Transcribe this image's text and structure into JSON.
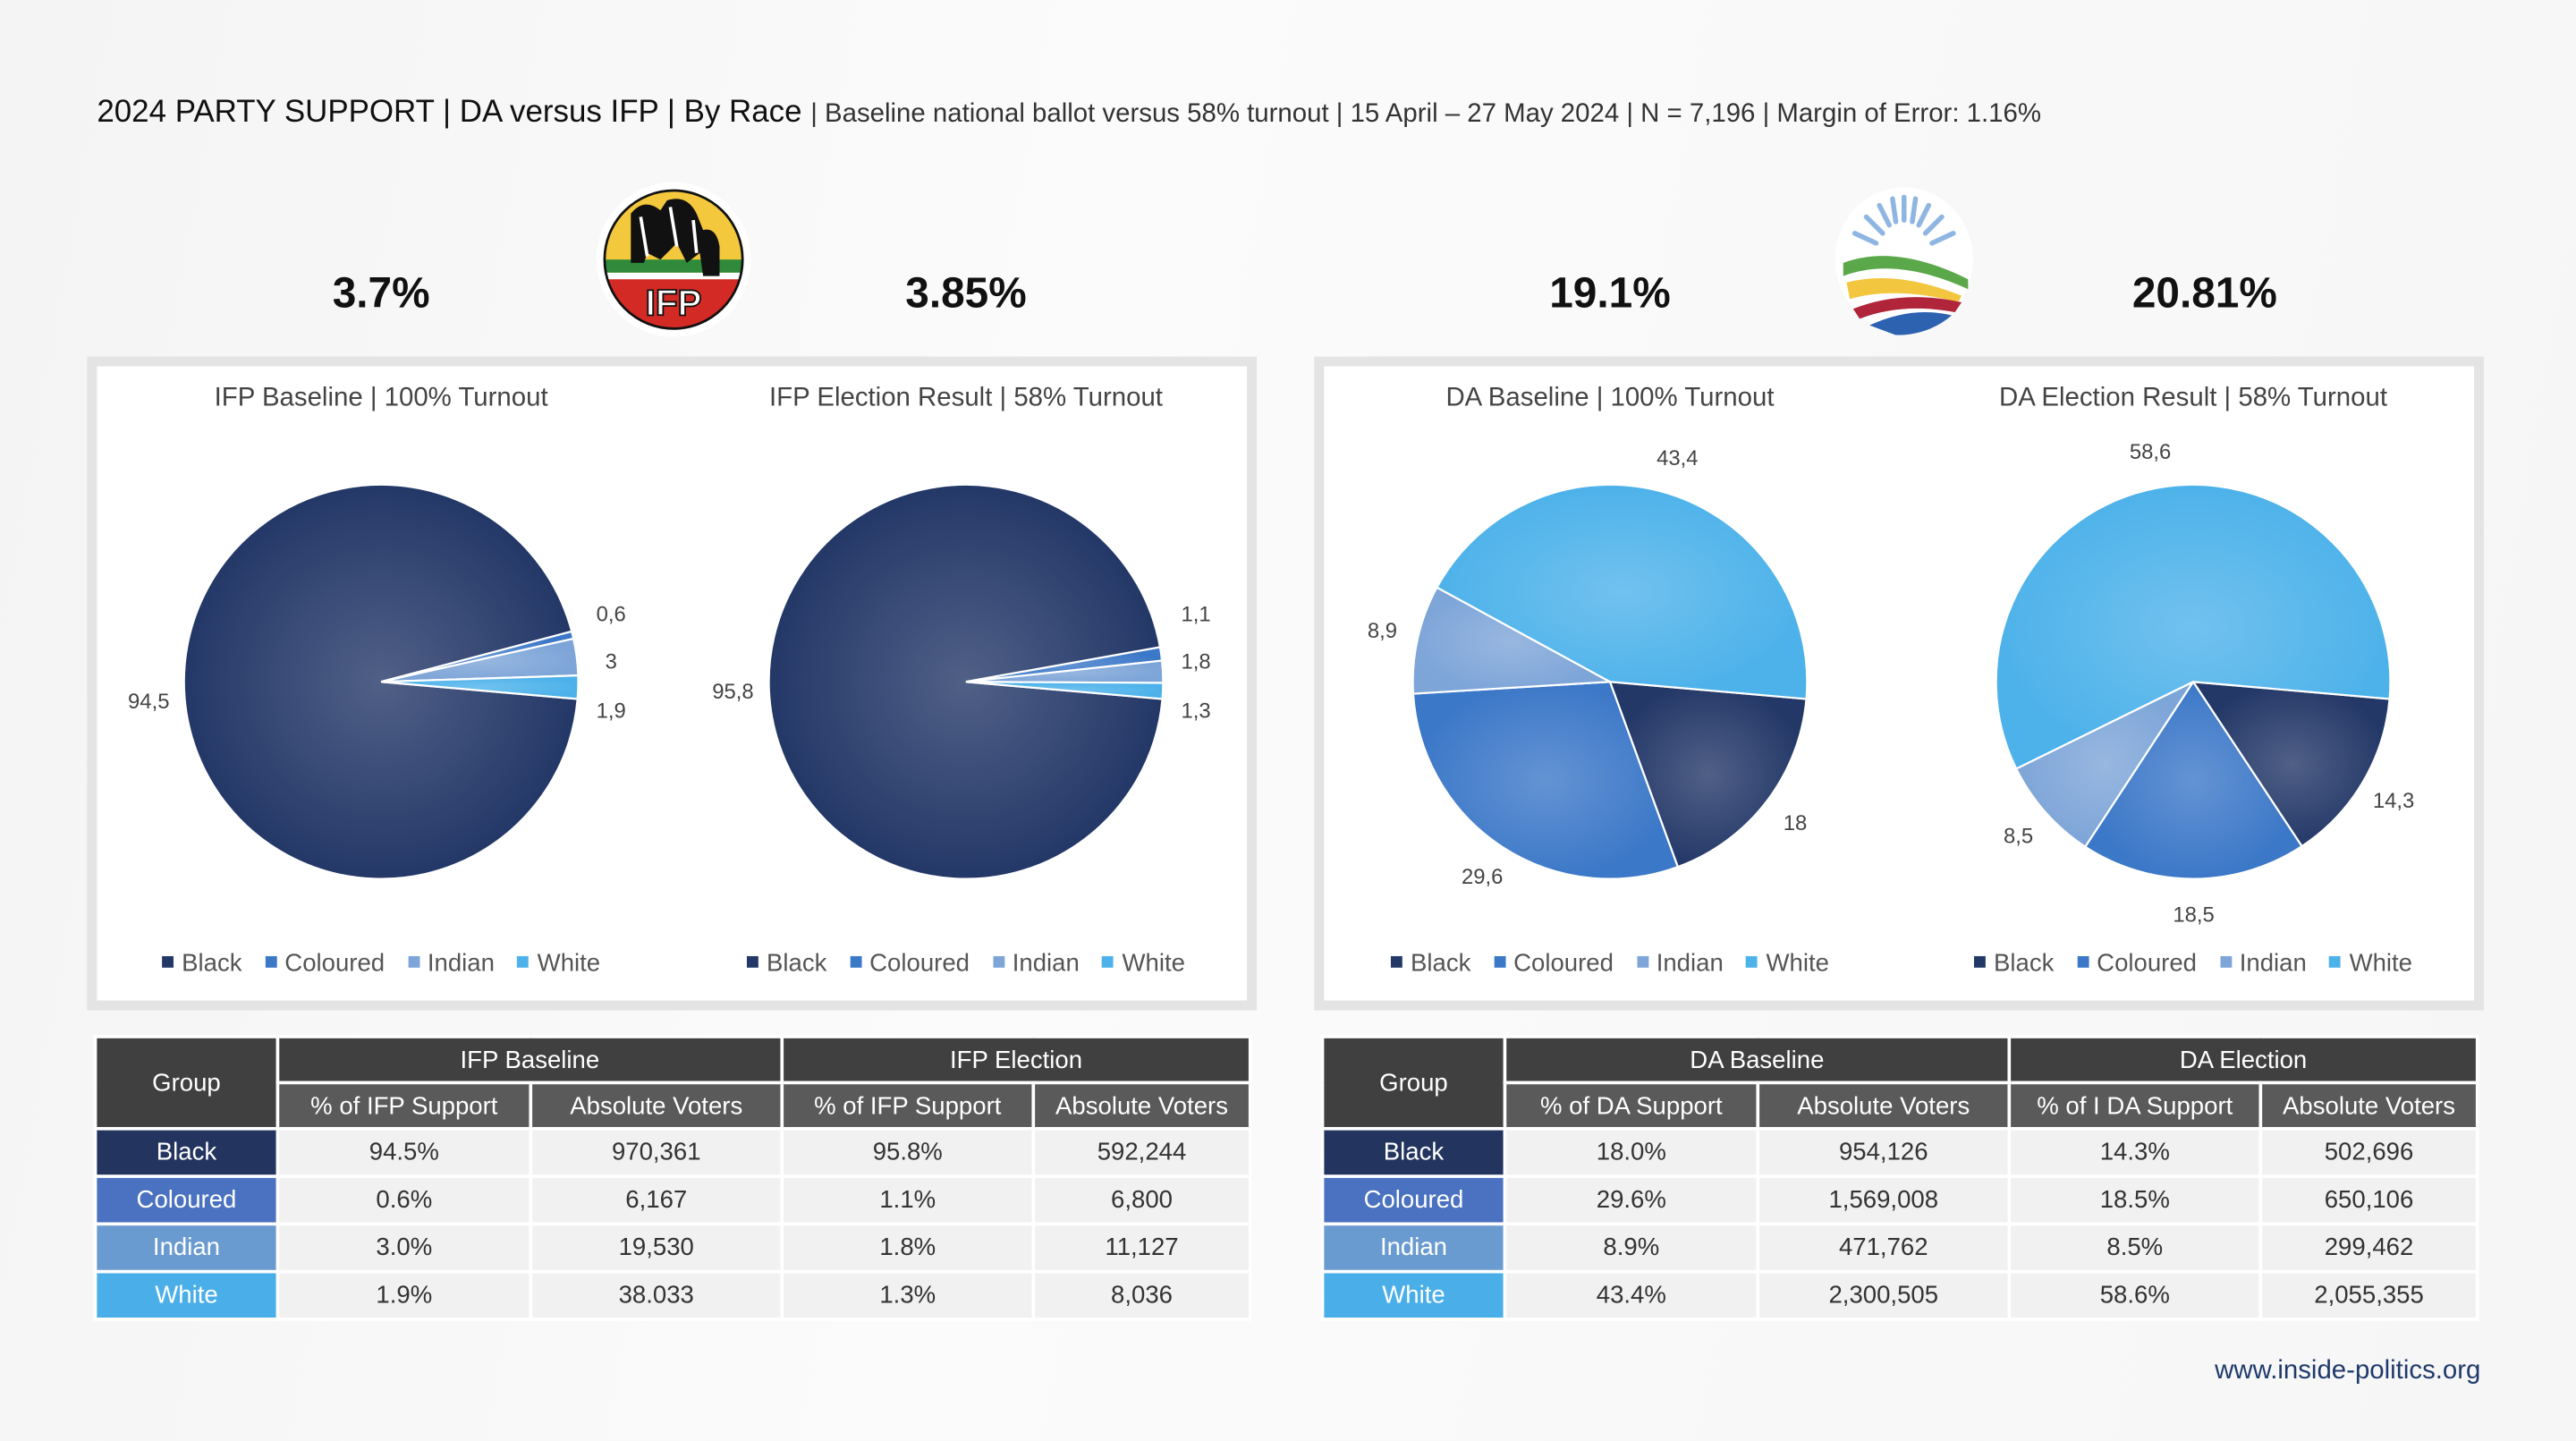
{
  "title": {
    "main": "2024 PARTY SUPPORT | DA versus IFP | By Race",
    "sub": "| Baseline national ballot versus 58% turnout | 15 April – 27 May 2024 | N = 7,196 | Margin of Error: 1.16%"
  },
  "headline": {
    "ifp_baseline": "3.7%",
    "ifp_election": "3.85%",
    "da_baseline": "19.1%",
    "da_election": "20.81%"
  },
  "logos": {
    "ifp": "IFP",
    "da": "DA"
  },
  "colors": {
    "Black": "#243868",
    "Coloured": "#3c78c8",
    "Indian": "#7ea5d8",
    "White": "#4db2ea"
  },
  "table_colors": {
    "Black": "#23345f",
    "Coloured": "#4a72c0",
    "Indian": "#6a9bd0",
    "White": "#4aaee8"
  },
  "chart_data": [
    {
      "type": "pie",
      "title": "IFP Baseline | 100% Turnout",
      "categories": [
        "Black",
        "Coloured",
        "Indian",
        "White"
      ],
      "values": [
        94.5,
        0.6,
        3,
        1.9
      ],
      "labels": [
        "94,5",
        "0,6",
        "3",
        "1,9"
      ],
      "legend": "bottom"
    },
    {
      "type": "pie",
      "title": "IFP Election Result | 58% Turnout",
      "categories": [
        "Black",
        "Coloured",
        "Indian",
        "White"
      ],
      "values": [
        95.8,
        1.1,
        1.8,
        1.3
      ],
      "labels": [
        "95,8",
        "1,1",
        "1,8",
        "1,3"
      ],
      "legend": "bottom"
    },
    {
      "type": "pie",
      "title": "DA Baseline | 100% Turnout",
      "categories": [
        "Black",
        "Coloured",
        "Indian",
        "White"
      ],
      "values": [
        18,
        29.6,
        8.9,
        43.4
      ],
      "labels": [
        "18",
        "29,6",
        "8,9",
        "43,4"
      ],
      "legend": "bottom"
    },
    {
      "type": "pie",
      "title": "DA Election Result | 58% Turnout",
      "categories": [
        "Black",
        "Coloured",
        "Indian",
        "White"
      ],
      "values": [
        14.3,
        18.5,
        8.5,
        58.6
      ],
      "labels": [
        "14,3",
        "18,5",
        "8,5",
        "58,6"
      ],
      "legend": "bottom"
    }
  ],
  "tables": [
    {
      "group": "Group",
      "h1": "IFP Baseline",
      "h2": "IFP Election",
      "sub": [
        "% of IFP Support",
        "Absolute Voters",
        "% of IFP Support",
        "Absolute Voters"
      ],
      "rows": [
        [
          "Black",
          "94.5%",
          "970,361",
          "95.8%",
          "592,244"
        ],
        [
          "Coloured",
          "0.6%",
          "6,167",
          "1.1%",
          "6,800"
        ],
        [
          "Indian",
          "3.0%",
          "19,530",
          "1.8%",
          "11,127"
        ],
        [
          "White",
          "1.9%",
          "38.033",
          "1.3%",
          "8,036"
        ]
      ]
    },
    {
      "group": "Group",
      "h1": "DA Baseline",
      "h2": "DA Election",
      "sub": [
        "% of DA Support",
        "Absolute Voters",
        "% of I DA Support",
        "Absolute Voters"
      ],
      "rows": [
        [
          "Black",
          "18.0%",
          "954,126",
          "14.3%",
          "502,696"
        ],
        [
          "Coloured",
          "29.6%",
          "1,569,008",
          "18.5%",
          "650,106"
        ],
        [
          "Indian",
          "8.9%",
          "471,762",
          "8.5%",
          "299,462"
        ],
        [
          "White",
          "43.4%",
          "2,300,505",
          "58.6%",
          "2,055,355"
        ]
      ]
    }
  ],
  "footer": {
    "url": "www.inside-politics.org"
  }
}
